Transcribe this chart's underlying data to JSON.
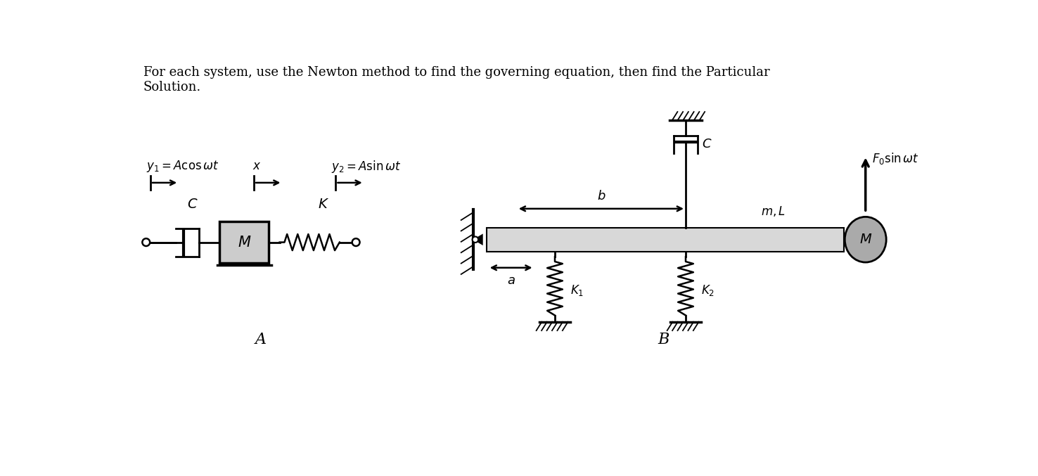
{
  "title_text": "For each system, use the Newton method to find the governing equation, then find the Particular\nSolution.",
  "title_fontsize": 13,
  "background_color": "#ffffff",
  "label_A": "A",
  "label_B": "B",
  "label_y1": "$y_1 = A\\cos\\omega t$",
  "label_x": "$x$",
  "label_y2": "$y_2 = A\\sin\\omega t$",
  "label_C_left": "$C$",
  "label_K": "$K$",
  "label_M_left": "$M$",
  "label_b": "$b$",
  "label_a": "$a$",
  "label_mL": "$m, L$",
  "label_M_right": "$M$",
  "label_K1": "$K_1$",
  "label_K2": "$K_2$",
  "label_C_right": "$C$",
  "label_F0": "$F_0\\sin\\omega t$"
}
